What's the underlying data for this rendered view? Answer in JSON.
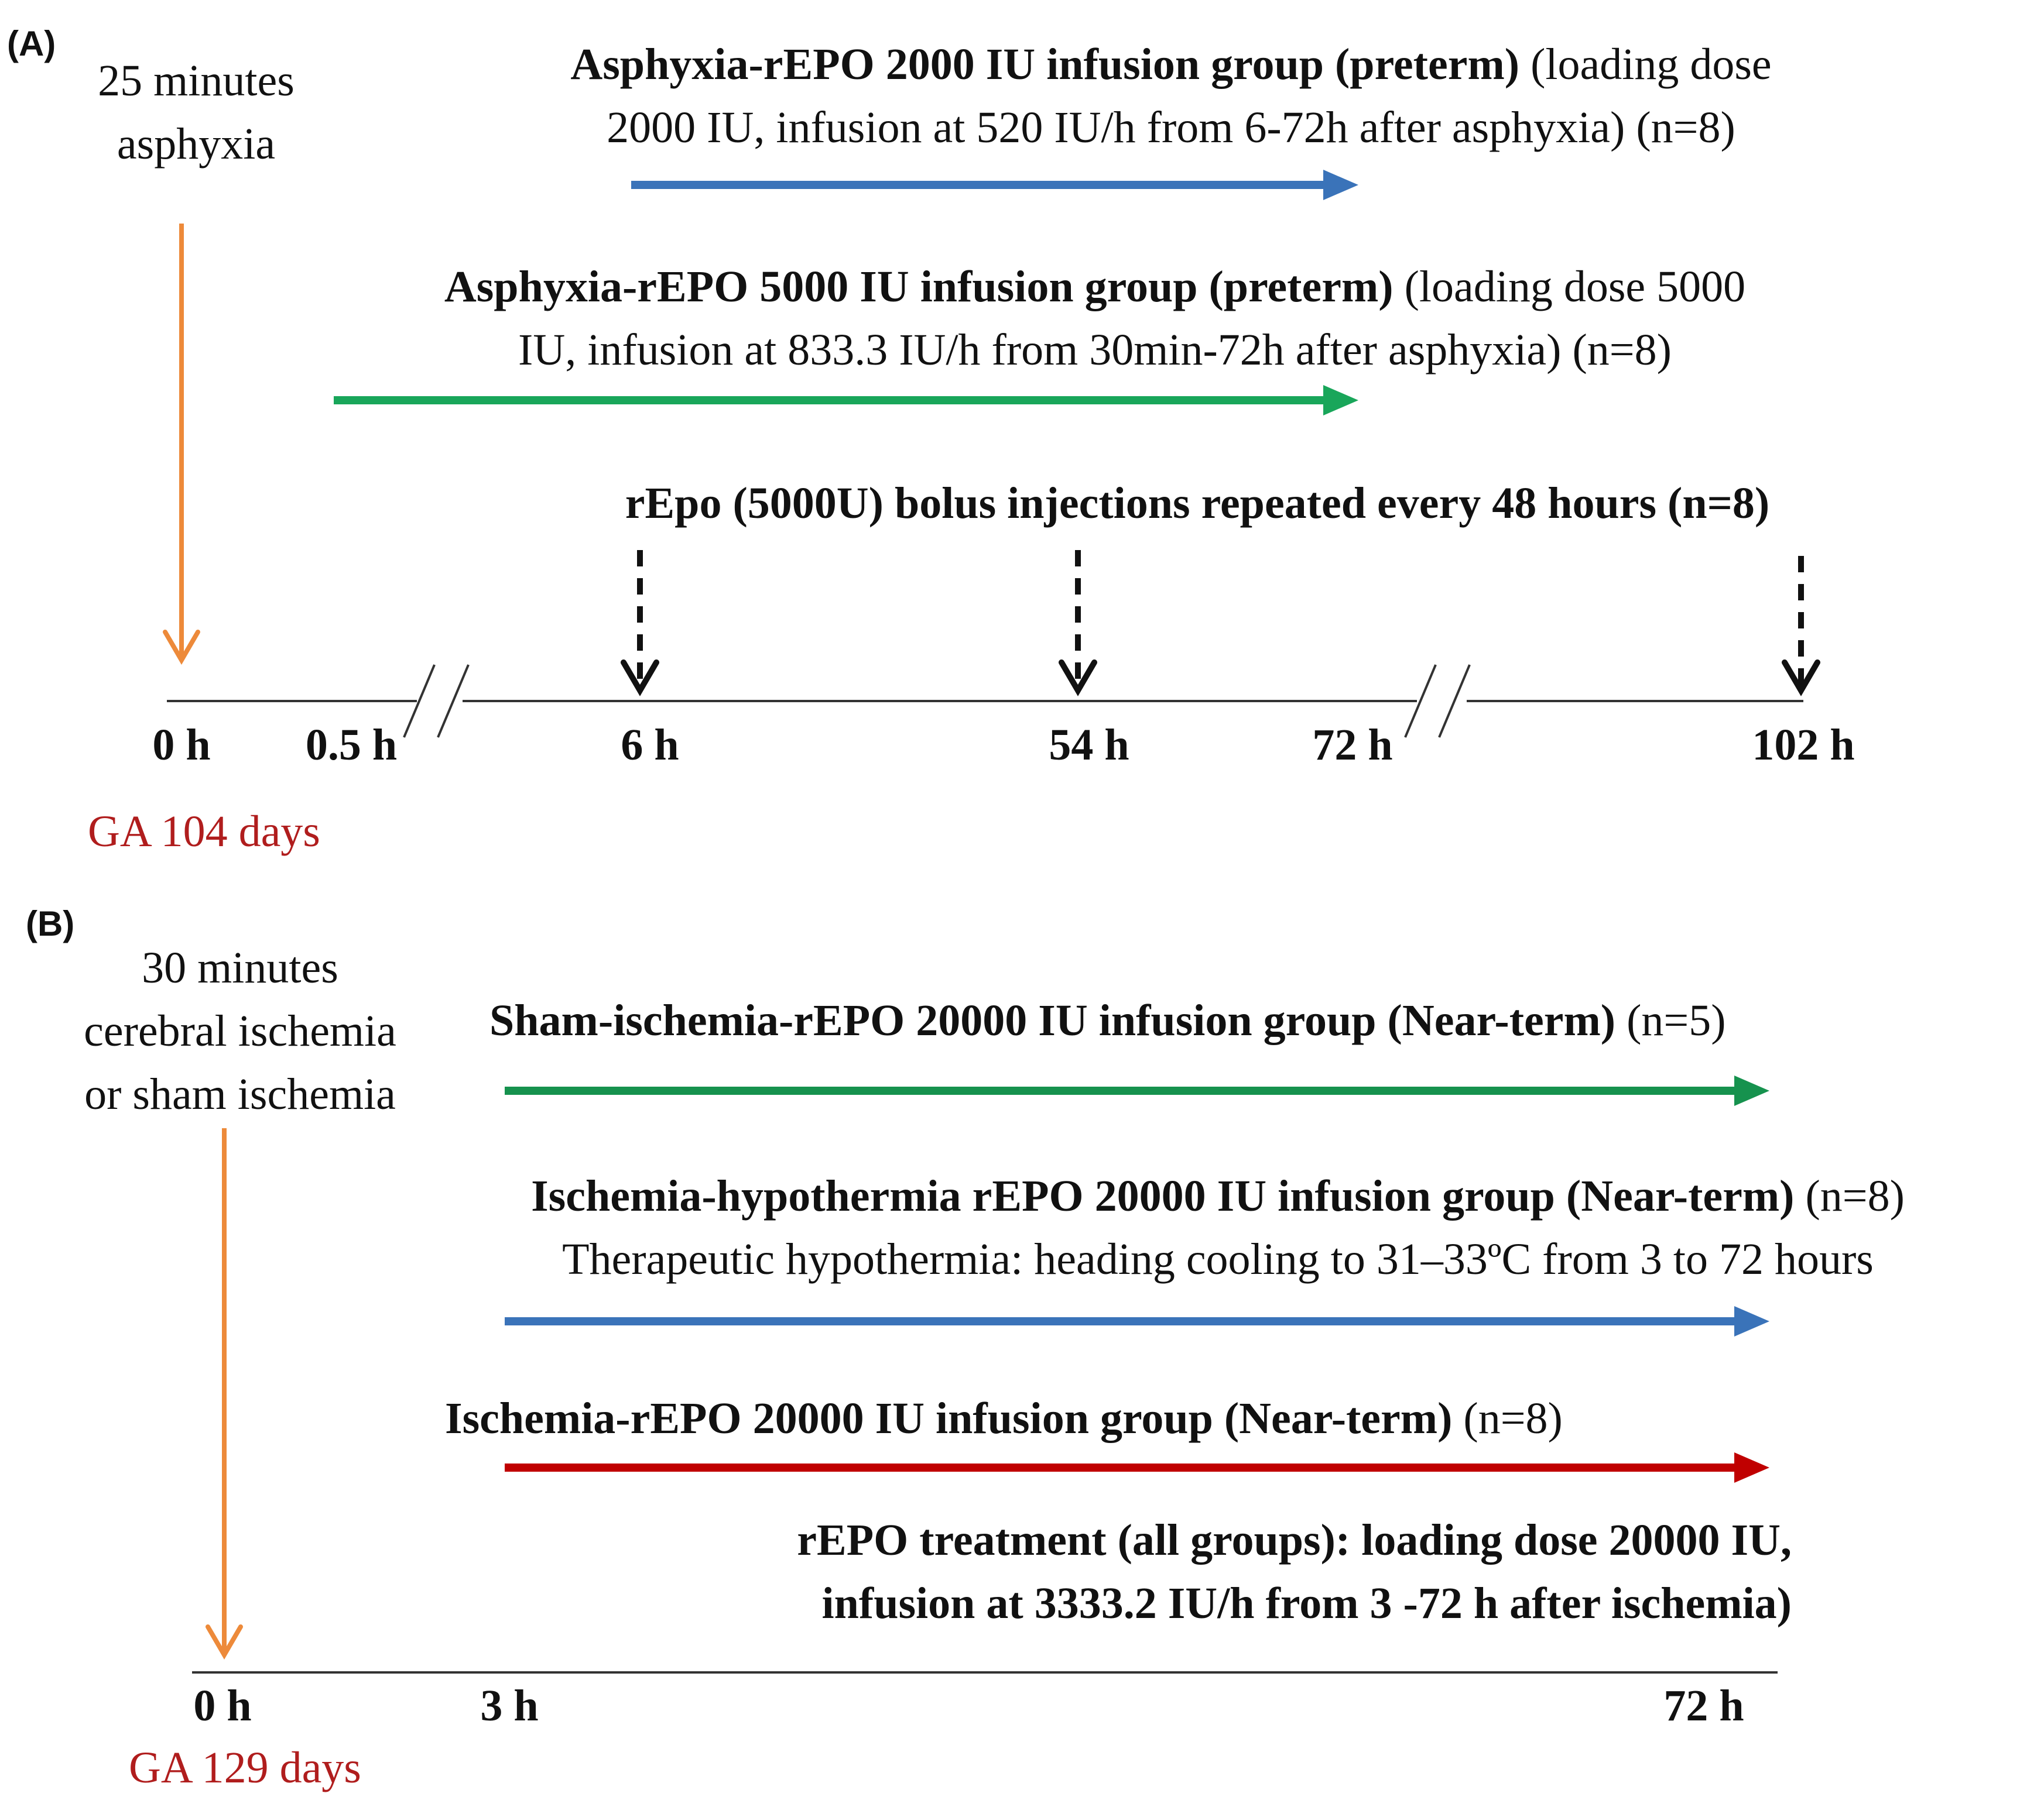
{
  "colors": {
    "blue": "#3a73b9",
    "green": "#19a65a",
    "dark_green": "#16924e",
    "red": "#c00000",
    "orange": "#ed8a3a",
    "black": "#111111",
    "axis": "#333333",
    "ga_text": "#b01d1d"
  },
  "panel_a": {
    "letter": "(A)",
    "insult": {
      "line1": "25 minutes",
      "line2": "asphyxia"
    },
    "group1": {
      "bold": "Asphyxia-rEPO 2000 IU infusion group (preterm)",
      "rest": " (loading dose",
      "line2": "2000 IU, infusion at 520 IU/h from 6-72h after asphyxia) (n=8)",
      "arrow_color": "blue"
    },
    "group2": {
      "bold": "Asphyxia-rEPO 5000 IU infusion group (preterm)",
      "rest": " (loading dose 5000",
      "line2": "IU, infusion at 833.3 IU/h from 30min-72h after asphyxia) (n=8)",
      "arrow_color": "green"
    },
    "bolus_label": "rEpo (5000U) bolus injections repeated every 48 hours (n=8)",
    "ticks": [
      "0 h",
      "0.5 h",
      "6 h",
      "54 h",
      "72 h",
      "102 h"
    ],
    "ga": "GA 104 days"
  },
  "panel_b": {
    "letter": "(B)",
    "insult": {
      "line1": "30 minutes",
      "line2": "cerebral ischemia",
      "line3": "or sham ischemia"
    },
    "group1": {
      "bold": "Sham-ischemia-rEPO 20000 IU infusion group (Near-term)",
      "rest": " (n=5)",
      "arrow_color": "dark_green"
    },
    "group2": {
      "bold": "Ischemia-hypothermia rEPO 20000 IU infusion group (Near-term)",
      "rest": " (n=8)",
      "line2": "Therapeutic hypothermia: heading cooling to 31–33ºC from 3 to 72 hours",
      "arrow_color": "blue"
    },
    "group3": {
      "bold": "Ischemia-rEPO 20000 IU infusion group (Near-term)",
      "rest": " (n=8)",
      "arrow_color": "red"
    },
    "treatment": {
      "line1": "rEPO treatment (all groups): loading dose 20000 IU,",
      "line2": "infusion at 3333.2 IU/h from 3 -72 h after ischemia)"
    },
    "ticks": [
      "0 h",
      "3 h",
      "72 h"
    ],
    "ga": "GA 129 days"
  }
}
